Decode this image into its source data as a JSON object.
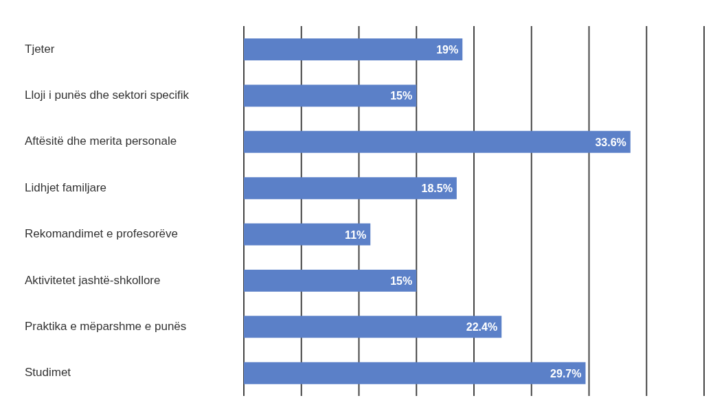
{
  "chart_data": {
    "type": "bar",
    "orientation": "horizontal",
    "categories": [
      "Tjeter",
      "Lloji i punës dhe sektori specifik",
      "Aftësitë dhe merita personale",
      "Lidhjet familjare",
      "Rekomandimet e profesorëve",
      "Aktivitetet jashtë-shkollore",
      "Praktika e mëparshme e punës",
      "Studimet"
    ],
    "values": [
      19,
      15,
      33.6,
      18.5,
      11,
      15,
      22.4,
      29.7
    ],
    "value_labels": [
      "19%",
      "15%",
      "33.6%",
      "18.5%",
      "11%",
      "15%",
      "22.4%",
      "29.7%"
    ],
    "color": "#5b80c8",
    "xlim": [
      0,
      40
    ],
    "grid": "x",
    "tick_labels": "y",
    "legend": false
  }
}
